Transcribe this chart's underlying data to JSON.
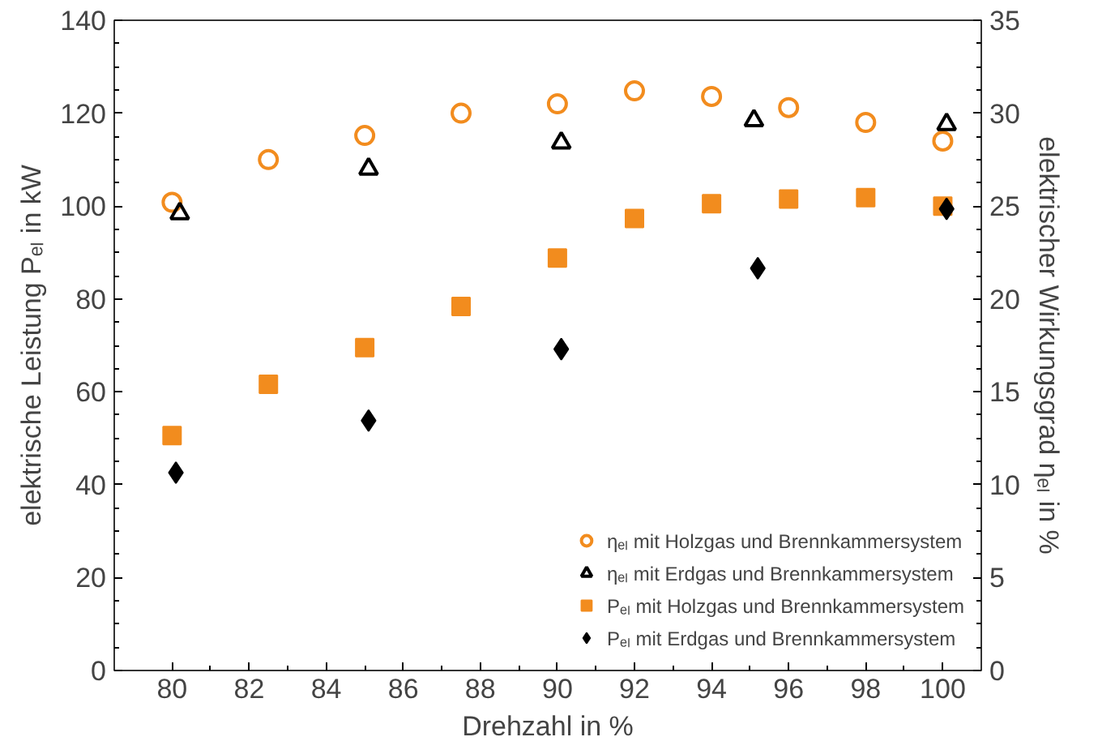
{
  "chart_data": {
    "type": "scatter",
    "xlabel": "Drehzahl in %",
    "ylabel": "elektrische Leistung Pₑₗ in kW",
    "y2label": "elektrischer Wirkungsgrad ηₑₗ in %",
    "xlim": [
      78.5,
      101
    ],
    "xticks": [
      80,
      82,
      84,
      86,
      88,
      90,
      92,
      94,
      96,
      98,
      100
    ],
    "ylim": [
      0,
      140
    ],
    "yticks": [
      0,
      20,
      40,
      60,
      80,
      100,
      120,
      140
    ],
    "y2lim": [
      0,
      35
    ],
    "y2ticks": [
      0,
      5,
      10,
      15,
      20,
      25,
      30,
      35
    ],
    "grid": false,
    "legend": "bottom right",
    "series": [
      {
        "name": "ηₑₗ mit Holzgas und Brennkammersystem",
        "color": "#f28c1e",
        "marker": "circle_open",
        "axis": "y2",
        "x": [
          80,
          82.5,
          85,
          87.5,
          90,
          92,
          94,
          96,
          98,
          100
        ],
        "values": [
          25.2,
          27.5,
          28.8,
          30,
          30.5,
          31.2,
          30.9,
          30.3,
          29.5,
          28.5
        ]
      },
      {
        "name": "ηₑₗ mit Erdgas und Brennkammersystem",
        "color": "#000000",
        "marker": "triangle_open",
        "axis": "y2",
        "x": [
          80.2,
          85.1,
          90.1,
          95.1,
          100.1
        ],
        "values": [
          24.6,
          27,
          28.4,
          29.6,
          29.4
        ]
      },
      {
        "name": "Pₑₗ mit Holzgas und Brennkammersystem",
        "color": "#f28c1e",
        "marker": "square",
        "x": [
          80,
          82.5,
          85,
          87.5,
          90,
          92,
          94,
          96,
          98,
          100
        ],
        "values": [
          50.6,
          61.6,
          69.5,
          78.4,
          88.8,
          97.3,
          100.5,
          101.5,
          101.8,
          100
        ]
      },
      {
        "name": "Pₑₗ mit Erdgas und Brennkammersystem",
        "color": "#000000",
        "marker": "diamond",
        "x": [
          80.1,
          85.1,
          90.1,
          95.2,
          100.1
        ],
        "values": [
          42.6,
          53.8,
          69.2,
          86.6,
          99.4
        ]
      }
    ]
  }
}
